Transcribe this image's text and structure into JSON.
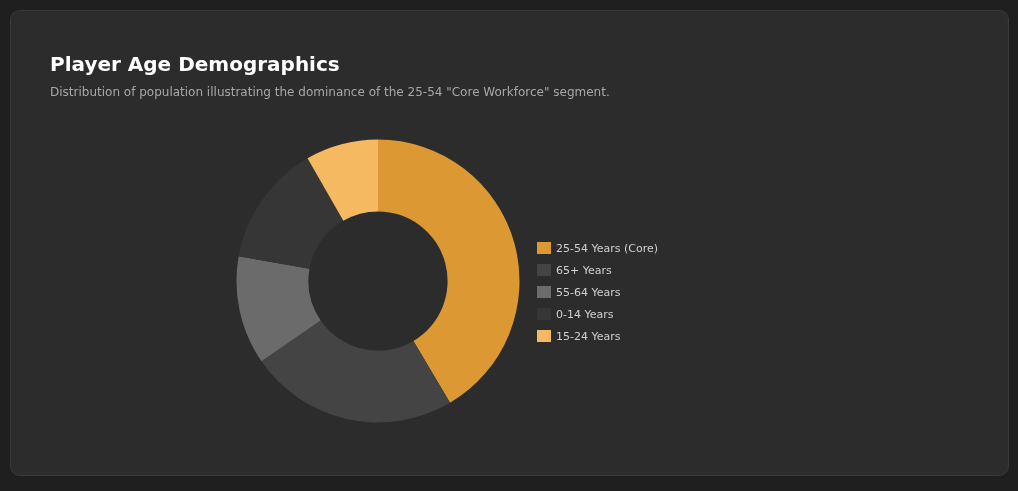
{
  "chart_data": {
    "type": "donut",
    "title": "Player Age Demographics",
    "subtitle": "Distribution of population illustrating the dominance of the 25-54 \"Core Workforce\" segment.",
    "categories": [
      "25-54 Years (Core)",
      "65+ Years",
      "55-64 Years",
      "0-14 Years",
      "15-24 Years"
    ],
    "values": [
      41.5,
      23.9,
      12.4,
      13.9,
      8.3
    ],
    "colors": [
      "#dc9833",
      "#444444",
      "#6b6b6b",
      "#363636",
      "#f5b961"
    ],
    "legend": "right"
  }
}
